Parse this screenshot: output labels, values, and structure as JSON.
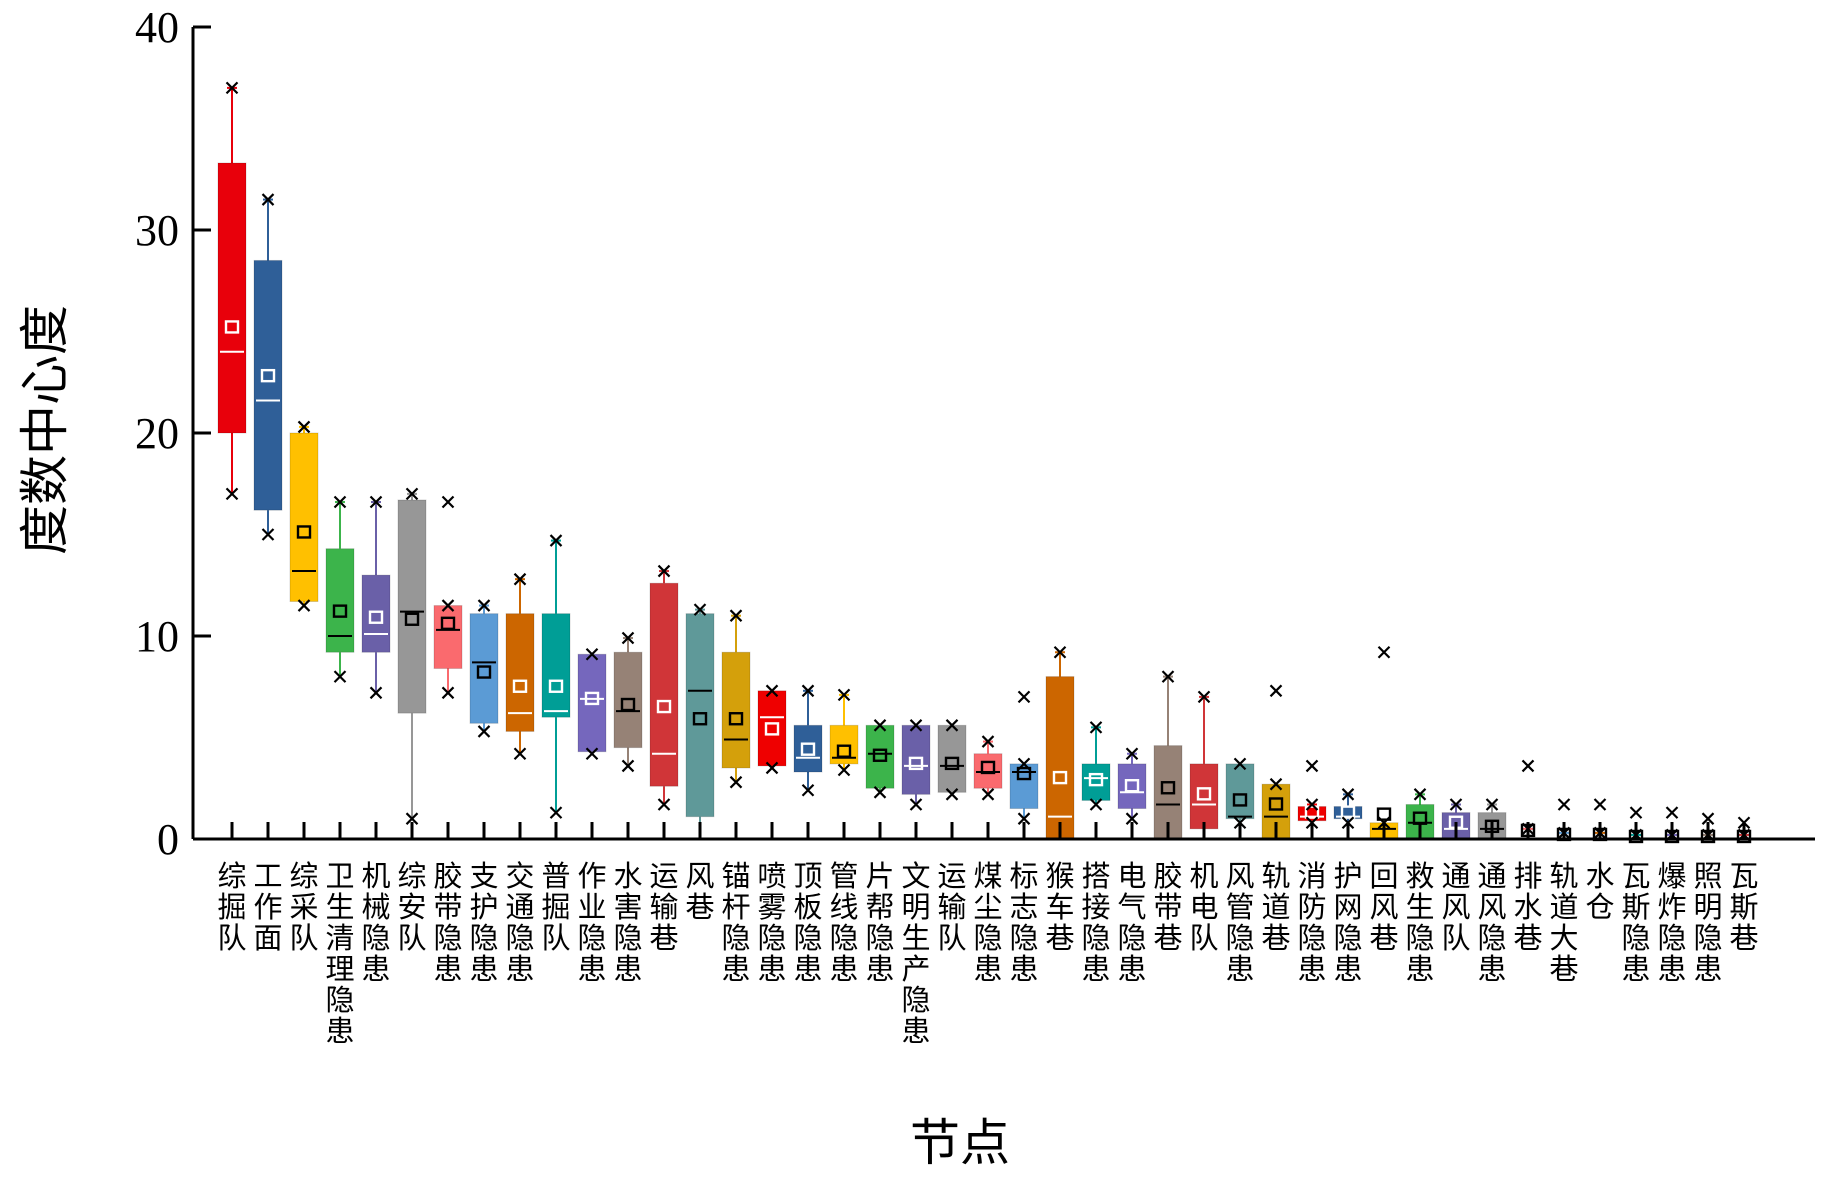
{
  "chart_data": {
    "type": "box",
    "xlabel": "节点",
    "ylabel": "度数中心度",
    "ylim": [
      0,
      40
    ],
    "yticks": [
      0,
      10,
      20,
      30,
      40
    ],
    "grid": false,
    "legend": "none",
    "boxes": [
      {
        "label": "综掘队",
        "color": "#e8000b",
        "min": 17,
        "q1": 20,
        "median": 24,
        "q3": 33.3,
        "max": 37,
        "mean": 25.2,
        "mark": "#ffffff",
        "outliers": []
      },
      {
        "label": "工作面",
        "color": "#2f5f98",
        "min": 15,
        "q1": 16.2,
        "median": 21.6,
        "q3": 28.5,
        "max": 31.5,
        "mean": 22.8,
        "mark": "#ffffff",
        "outliers": []
      },
      {
        "label": "综采队",
        "color": "#ffc000",
        "min": 11.5,
        "q1": 11.7,
        "median": 13.2,
        "q3": 20,
        "max": 20.3,
        "mean": 15.1,
        "mark": "#000000",
        "outliers": []
      },
      {
        "label": "卫生清理隐患",
        "color": "#3cb44b",
        "min": 8,
        "q1": 9.2,
        "median": 10,
        "q3": 14.3,
        "max": 16.6,
        "mean": 11.2,
        "mark": "#000000",
        "outliers": []
      },
      {
        "label": "机械隐患",
        "color": "#6a60a8",
        "min": 7.2,
        "q1": 9.2,
        "median": 10.1,
        "q3": 13,
        "max": 16.6,
        "mean": 10.9,
        "mark": "#ffffff",
        "outliers": []
      },
      {
        "label": "综安队",
        "color": "#979797",
        "min": 1,
        "q1": 6.2,
        "median": 11.2,
        "q3": 16.7,
        "max": 17,
        "mean": 10.8,
        "mark": "#000000",
        "outliers": []
      },
      {
        "label": "胶带隐患",
        "color": "#fa6a6e",
        "min": 7.2,
        "q1": 8.4,
        "median": 10.3,
        "q3": 11.5,
        "max": 11.5,
        "mean": 10.6,
        "mark": "#000000",
        "outliers": [
          16.6
        ]
      },
      {
        "label": "支护隐患",
        "color": "#5b9bd5",
        "min": 5.3,
        "q1": 5.7,
        "median": 8.7,
        "q3": 11.1,
        "max": 11.5,
        "mean": 8.2,
        "mark": "#000000",
        "outliers": []
      },
      {
        "label": "交通隐患",
        "color": "#cc6600",
        "min": 4.2,
        "q1": 5.3,
        "median": 6.2,
        "q3": 11.1,
        "max": 12.8,
        "mean": 7.5,
        "mark": "#ffffff",
        "outliers": []
      },
      {
        "label": "普掘队",
        "color": "#009e96",
        "min": 1.3,
        "q1": 6,
        "median": 6.3,
        "q3": 11.1,
        "max": 14.7,
        "mean": 7.5,
        "mark": "#ffffff",
        "outliers": []
      },
      {
        "label": "作业隐患",
        "color": "#7567bd",
        "min": 4.2,
        "q1": 4.3,
        "median": 6.9,
        "q3": 9.1,
        "max": 9.1,
        "mean": 6.9,
        "mark": "#ffffff",
        "outliers": []
      },
      {
        "label": "水害隐患",
        "color": "#968276",
        "min": 3.6,
        "q1": 4.5,
        "median": 6.3,
        "q3": 9.2,
        "max": 9.9,
        "mean": 6.6,
        "mark": "#000000",
        "outliers": []
      },
      {
        "label": "运输巷",
        "color": "#d03538",
        "min": 1.7,
        "q1": 2.6,
        "median": 4.2,
        "q3": 12.6,
        "max": 13.2,
        "mean": 6.5,
        "mark": "#ffffff",
        "outliers": []
      },
      {
        "label": "风巷",
        "color": "#5f9999",
        "min": 0,
        "q1": 1.1,
        "median": 7.3,
        "q3": 11.1,
        "max": 11.3,
        "mean": 5.9,
        "mark": "#000000",
        "outliers": []
      },
      {
        "label": "锚杆隐患",
        "color": "#d4a00b",
        "min": 2.8,
        "q1": 3.5,
        "median": 4.9,
        "q3": 9.2,
        "max": 11,
        "mean": 5.9,
        "mark": "#000000",
        "outliers": []
      },
      {
        "label": "喷雾隐患",
        "color": "#ef0000",
        "min": 3.5,
        "q1": 3.6,
        "median": 6,
        "q3": 7.3,
        "max": 7.3,
        "mean": 5.4,
        "mark": "#ffffff",
        "outliers": []
      },
      {
        "label": "顶板隐患",
        "color": "#2f5f98",
        "min": 2.4,
        "q1": 3.3,
        "median": 4,
        "q3": 5.6,
        "max": 7.3,
        "mean": 4.4,
        "mark": "#ffffff",
        "outliers": []
      },
      {
        "label": "管线隐患",
        "color": "#ffc000",
        "min": 3.4,
        "q1": 3.7,
        "median": 4,
        "q3": 5.6,
        "max": 7.1,
        "mean": 4.3,
        "mark": "#000000",
        "outliers": []
      },
      {
        "label": "片帮隐患",
        "color": "#3cb44b",
        "min": 2.3,
        "q1": 2.5,
        "median": 4.2,
        "q3": 5.6,
        "max": 5.6,
        "mean": 4.1,
        "mark": "#000000",
        "outliers": []
      },
      {
        "label": "文明生产隐患",
        "color": "#6a60a8",
        "min": 1.7,
        "q1": 2.2,
        "median": 3.6,
        "q3": 5.6,
        "max": 5.6,
        "mean": 3.7,
        "mark": "#ffffff",
        "outliers": []
      },
      {
        "label": "运输队",
        "color": "#979797",
        "min": 2.2,
        "q1": 2.3,
        "median": 3.6,
        "q3": 5.6,
        "max": 5.6,
        "mean": 3.7,
        "mark": "#000000",
        "outliers": []
      },
      {
        "label": "煤尘隐患",
        "color": "#fa6a6e",
        "min": 2.2,
        "q1": 2.5,
        "median": 3.3,
        "q3": 4.2,
        "max": 4.8,
        "mean": 3.5,
        "mark": "#000000",
        "outliers": []
      },
      {
        "label": "标志隐患",
        "color": "#5b9bd5",
        "min": 1,
        "q1": 1.5,
        "median": 3.3,
        "q3": 3.7,
        "max": 3.7,
        "mean": 3.2,
        "mark": "#000000",
        "outliers": [
          7
        ]
      },
      {
        "label": "猴车巷",
        "color": "#cc6600",
        "min": 0,
        "q1": 0,
        "median": 1.1,
        "q3": 8,
        "max": 9.2,
        "mean": 3,
        "mark": "#ffffff",
        "outliers": []
      },
      {
        "label": "搭接隐患",
        "color": "#009e96",
        "min": 1.7,
        "q1": 1.9,
        "median": 3,
        "q3": 3.7,
        "max": 5.5,
        "mean": 2.9,
        "mark": "#ffffff",
        "outliers": []
      },
      {
        "label": "电气隐患",
        "color": "#7567bd",
        "min": 1,
        "q1": 1.5,
        "median": 2.3,
        "q3": 3.7,
        "max": 4.2,
        "mean": 2.6,
        "mark": "#ffffff",
        "outliers": []
      },
      {
        "label": "胶带巷",
        "color": "#968276",
        "min": 0,
        "q1": 0,
        "median": 1.7,
        "q3": 4.6,
        "max": 8,
        "mean": 2.5,
        "mark": "#000000",
        "outliers": []
      },
      {
        "label": "机电队",
        "color": "#d03538",
        "min": 0,
        "q1": 0.5,
        "median": 1.7,
        "q3": 3.7,
        "max": 7,
        "mean": 2.2,
        "mark": "#ffffff",
        "outliers": []
      },
      {
        "label": "风管隐患",
        "color": "#5f9999",
        "min": 0.8,
        "q1": 1,
        "median": 1.1,
        "q3": 3.7,
        "max": 3.7,
        "mean": 1.9,
        "mark": "#000000",
        "outliers": []
      },
      {
        "label": "轨道巷",
        "color": "#d4a00b",
        "min": 0,
        "q1": 0,
        "median": 1.1,
        "q3": 2.7,
        "max": 2.7,
        "mean": 1.7,
        "mark": "#000000",
        "outliers": [
          7.3
        ]
      },
      {
        "label": "消防隐患",
        "color": "#ef0000",
        "min": 0.8,
        "q1": 0.9,
        "median": 1.1,
        "q3": 1.6,
        "max": 1.7,
        "mean": 1.3,
        "mark": "#ffffff",
        "outliers": [
          3.6
        ]
      },
      {
        "label": "护网隐患",
        "color": "#2f5f98",
        "min": 0.8,
        "q1": 1,
        "median": 1.1,
        "q3": 1.6,
        "max": 2.2,
        "mean": 1.3,
        "mark": "#ffffff",
        "outliers": []
      },
      {
        "label": "回风巷",
        "color": "#ffc000",
        "min": 0,
        "q1": 0,
        "median": 0.5,
        "q3": 0.8,
        "max": 0.8,
        "mean": 1.2,
        "mark": "#000000",
        "outliers": [
          9.2
        ]
      },
      {
        "label": "救生隐患",
        "color": "#3cb44b",
        "min": 0,
        "q1": 0,
        "median": 0.8,
        "q3": 1.7,
        "max": 2.2,
        "mean": 1,
        "mark": "#000000",
        "outliers": []
      },
      {
        "label": "通风队",
        "color": "#6a60a8",
        "min": 0,
        "q1": 0,
        "median": 0.5,
        "q3": 1.3,
        "max": 1.7,
        "mean": 0.8,
        "mark": "#ffffff",
        "outliers": []
      },
      {
        "label": "通风隐患",
        "color": "#979797",
        "min": 0,
        "q1": 0,
        "median": 0.5,
        "q3": 1.3,
        "max": 1.7,
        "mean": 0.6,
        "mark": "#000000",
        "outliers": []
      },
      {
        "label": "排水巷",
        "color": "#fa6a6e",
        "min": 0,
        "q1": 0,
        "median": 0,
        "q3": 0,
        "max": 0.5,
        "mean": 0.4,
        "mark": "#000000",
        "outliers": [
          3.6
        ]
      },
      {
        "label": "轨道大巷",
        "color": "#5b9bd5",
        "min": 0,
        "q1": 0,
        "median": 0,
        "q3": 0,
        "max": 0.3,
        "mean": 0.2,
        "mark": "#000000",
        "outliers": [
          1.7
        ]
      },
      {
        "label": "水仓",
        "color": "#cc6600",
        "min": 0,
        "q1": 0,
        "median": 0,
        "q3": 0,
        "max": 0.3,
        "mean": 0.2,
        "mark": "#000000",
        "outliers": [
          1.7
        ]
      },
      {
        "label": "瓦斯隐患",
        "color": "#009e96",
        "min": 0,
        "q1": 0,
        "median": 0,
        "q3": 0,
        "max": 0.2,
        "mean": 0.1,
        "mark": "#000000",
        "outliers": [
          1.3
        ]
      },
      {
        "label": "爆炸隐患",
        "color": "#7567bd",
        "min": 0,
        "q1": 0,
        "median": 0,
        "q3": 0,
        "max": 0.2,
        "mean": 0.1,
        "mark": "#000000",
        "outliers": [
          1.3
        ]
      },
      {
        "label": "照明隐患",
        "color": "#968276",
        "min": 0,
        "q1": 0,
        "median": 0,
        "q3": 0,
        "max": 0.2,
        "mean": 0.1,
        "mark": "#000000",
        "outliers": [
          1
        ]
      },
      {
        "label": "瓦斯巷",
        "color": "#d03538",
        "min": 0,
        "q1": 0,
        "median": 0,
        "q3": 0,
        "max": 0.2,
        "mean": 0.1,
        "mark": "#000000",
        "outliers": [
          0.8
        ]
      }
    ]
  }
}
